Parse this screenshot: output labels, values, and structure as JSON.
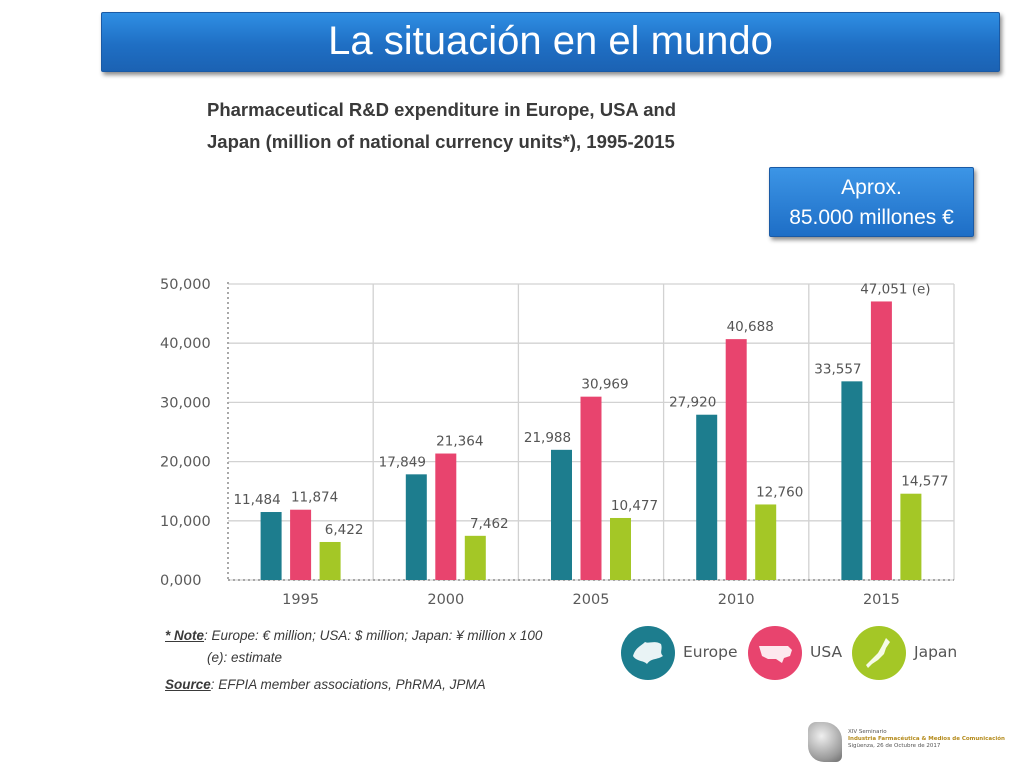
{
  "slide": {
    "title": "La situación en el mundo",
    "callout_line1": "Aprox.",
    "callout_line2": "85.000 millones €"
  },
  "chart_data": {
    "type": "bar",
    "title_line1": "Pharmaceutical R&D expenditure in Europe, USA and",
    "title_line2": "Japan (million of national currency units*), 1995-2015",
    "categories": [
      "1995",
      "2000",
      "2005",
      "2010",
      "2015"
    ],
    "series": [
      {
        "name": "Europe",
        "color": "#1d7d8e",
        "values": [
          11484,
          17849,
          21988,
          27920,
          33557
        ],
        "labels": [
          "11,484",
          "17,849",
          "21,988",
          "27,920",
          "33,557"
        ]
      },
      {
        "name": "USA",
        "color": "#e8446e",
        "values": [
          11874,
          21364,
          30969,
          40688,
          47051
        ],
        "labels": [
          "11,874",
          "21,364",
          "30,969",
          "40,688",
          "47,051 (e)"
        ]
      },
      {
        "name": "Japan",
        "color": "#a4c726",
        "values": [
          6422,
          7462,
          10477,
          12760,
          14577
        ],
        "labels": [
          "6,422",
          "7,462",
          "10,477",
          "12,760",
          "14,577"
        ]
      }
    ],
    "ylim": [
      0,
      50000
    ],
    "yticks": [
      "0,000",
      "10,000",
      "20,000",
      "30,000",
      "40,000",
      "50,000"
    ],
    "grid": true,
    "legend_position": "bottom-right"
  },
  "notes": {
    "note_label": "* Note",
    "note_text": ": Europe: € million; USA: $ million; Japan: ¥ million x 100",
    "note_line2": "(e): estimate",
    "source_label": "Source",
    "source_text": ": EFPIA member associations, PhRMA, JPMA"
  },
  "logo": {
    "line1": "XIV Seminario",
    "line2": "Industria Farmacéutica & Medios de Comunicación",
    "line3": "Sigüenza, 26 de Octubre de 2017"
  }
}
